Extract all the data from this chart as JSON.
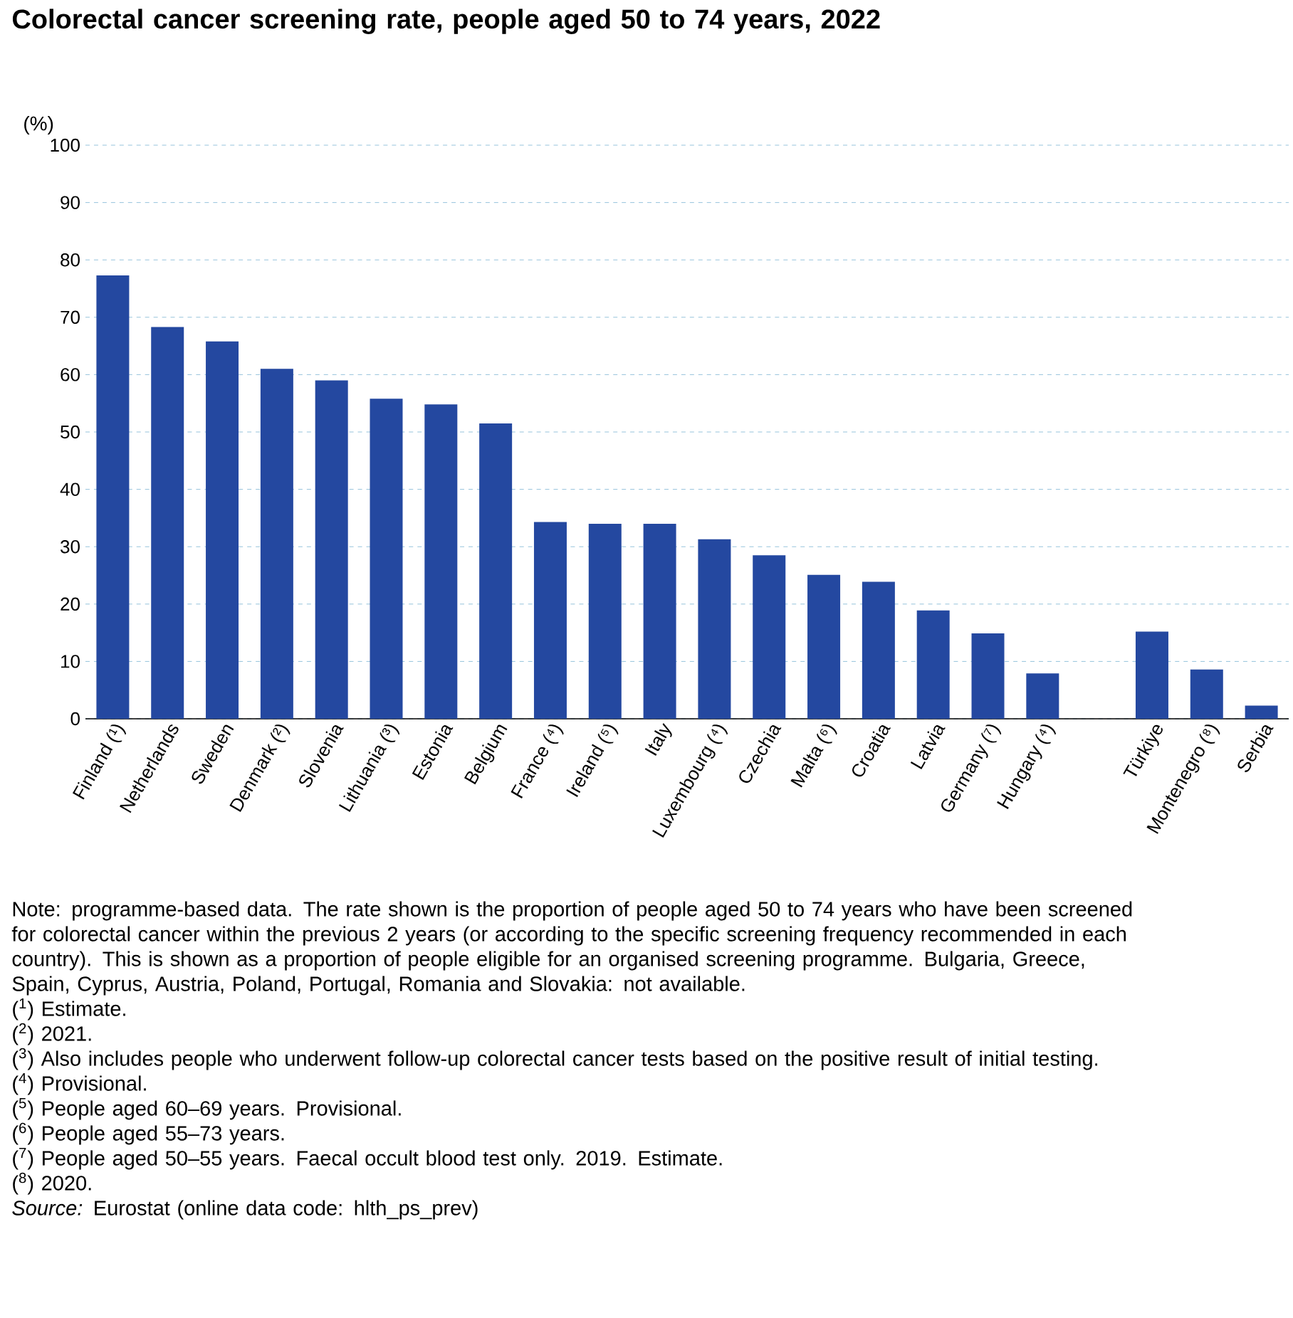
{
  "chart_data": {
    "type": "bar",
    "title": "Colorectal cancer screening rate, people aged 50 to 74 years, 2022",
    "ylabel": "(%)",
    "categories": [
      "Finland (¹)",
      "Netherlands",
      "Sweden",
      "Denmark (²)",
      "Slovenia",
      "Lithuania (³)",
      "Estonia",
      "Belgium",
      "France (⁴)",
      "Ireland (⁵)",
      "Italy",
      "Luxembourg (⁴)",
      "Czechia",
      "Malta (⁶)",
      "Croatia",
      "Latvia",
      "Germany (⁷)",
      "Hungary (⁴)",
      null,
      "Türkiye",
      "Montenegro (⁸)",
      "Serbia"
    ],
    "values": [
      77.3,
      68.3,
      65.8,
      61.0,
      59.0,
      55.8,
      54.8,
      51.5,
      34.3,
      34.0,
      34.0,
      31.3,
      28.5,
      25.1,
      23.9,
      18.9,
      14.9,
      7.9,
      null,
      15.2,
      8.6,
      2.3
    ],
    "color": "#2448a0",
    "ylim": [
      0,
      100
    ],
    "yticks": [
      0,
      10,
      20,
      30,
      40,
      50,
      60,
      70,
      80,
      90,
      100
    ],
    "grid": "y",
    "annotations": [
      "Note: programme-based data. The rate shown is the proportion of people aged 50 to 74 years who have been screened for colorectal cancer within the previous 2 years (or according to the specific screening frequency recommended in each country). This is shown as a proportion of people eligible for an organised screening programme. Bulgaria, Greece, Spain, Cyprus, Austria, Poland, Portugal, Romania and Slovakia: not available.",
      "($^{1}$) Estimate.",
      "($^{2}$) 2021.",
      "($^{3}$) Also includes people who underwent follow-up colorectal cancer tests based on the positive result of initial testing.",
      "($^{4}$) Provisional.",
      "($^{5}$) People aged 60–69 years. Provisional.",
      "($^{6}$) People aged 55–73 years.",
      "($^{7}$) People aged 50–55 years. Faecal occult blood test only. 2019. Estimate.",
      "($^{8}$) 2020.",
      "*Source:* Eurostat (online data code: hlth_ps_prev)"
    ]
  }
}
